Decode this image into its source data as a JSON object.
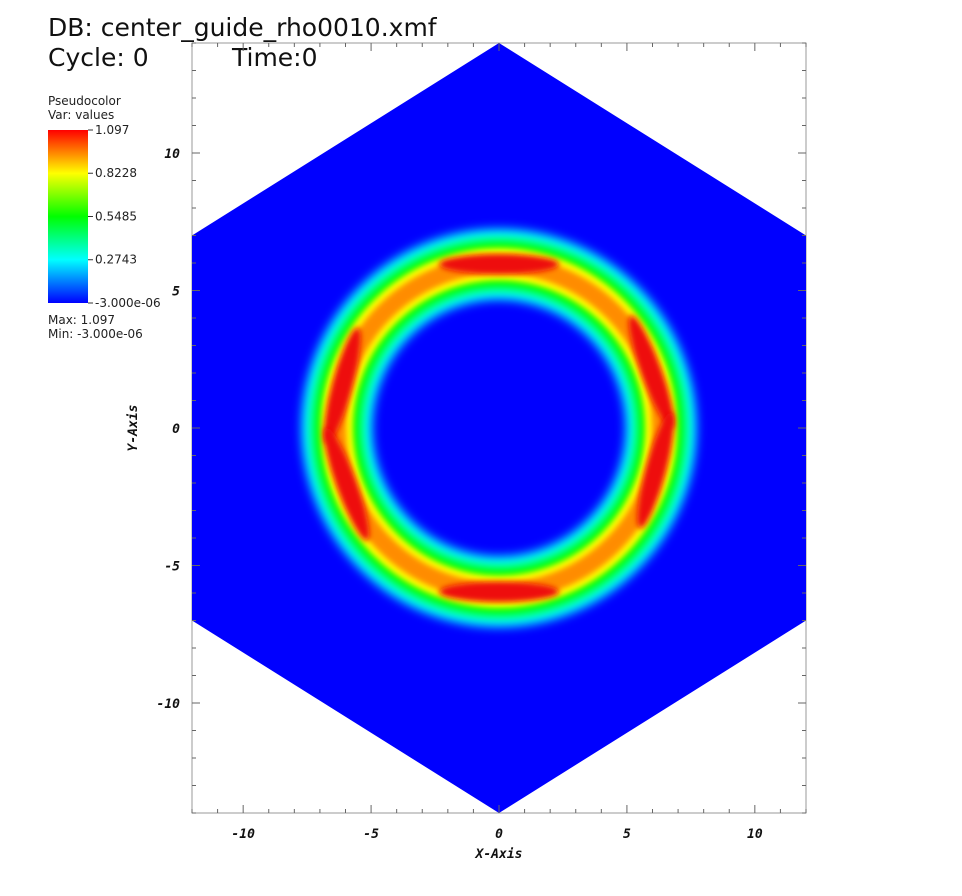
{
  "header": {
    "db": "DB: center_guide_rho0010.xmf",
    "cycle": "Cycle: 0",
    "time": "Time:0"
  },
  "legend": {
    "plot_type": "Pseudocolor",
    "variable": "Var: values",
    "max_label": "Max:  1.097",
    "min_label": "Min: -3.000e-06"
  },
  "colors": {
    "background_field": "#0000ff",
    "colormap": [
      "#0000ff",
      "#00ffff",
      "#00ff00",
      "#ffff00",
      "#ff0000"
    ]
  },
  "chart_data": {
    "type": "heatmap",
    "title": "",
    "xlabel": "X-Axis",
    "ylabel": "Y-Axis",
    "xlim": [
      -12,
      12
    ],
    "ylim": [
      -14,
      14
    ],
    "x_ticks": [
      -10,
      -5,
      0,
      5,
      10
    ],
    "y_ticks": [
      -10,
      -5,
      0,
      5,
      10
    ],
    "x_tick_labels": [
      "-10",
      "-5",
      "0",
      "5",
      "10"
    ],
    "y_tick_labels": [
      "-10",
      "-5",
      "0",
      "5",
      "10"
    ],
    "domain_shape": {
      "type": "hexagon",
      "vertices": [
        [
          0,
          14
        ],
        [
          12,
          7
        ],
        [
          12,
          -7
        ],
        [
          0,
          -14
        ],
        [
          -12,
          -7
        ],
        [
          -12,
          7
        ]
      ]
    },
    "feature": {
      "type": "ring",
      "center": [
        0,
        0
      ],
      "radius": 6.4,
      "width": 1.2,
      "peak_value": 1.097,
      "peak_angles_deg": [
        20,
        90,
        165,
        200,
        270,
        345
      ]
    },
    "colorbar": {
      "min": -3e-06,
      "max": 1.097,
      "tick_values": [
        1.097,
        0.8228,
        0.5485,
        0.2743,
        -3e-06
      ],
      "tick_labels": [
        "1.097",
        "0.8228",
        "0.5485",
        "0.2743",
        "-3.000e-06"
      ]
    }
  }
}
